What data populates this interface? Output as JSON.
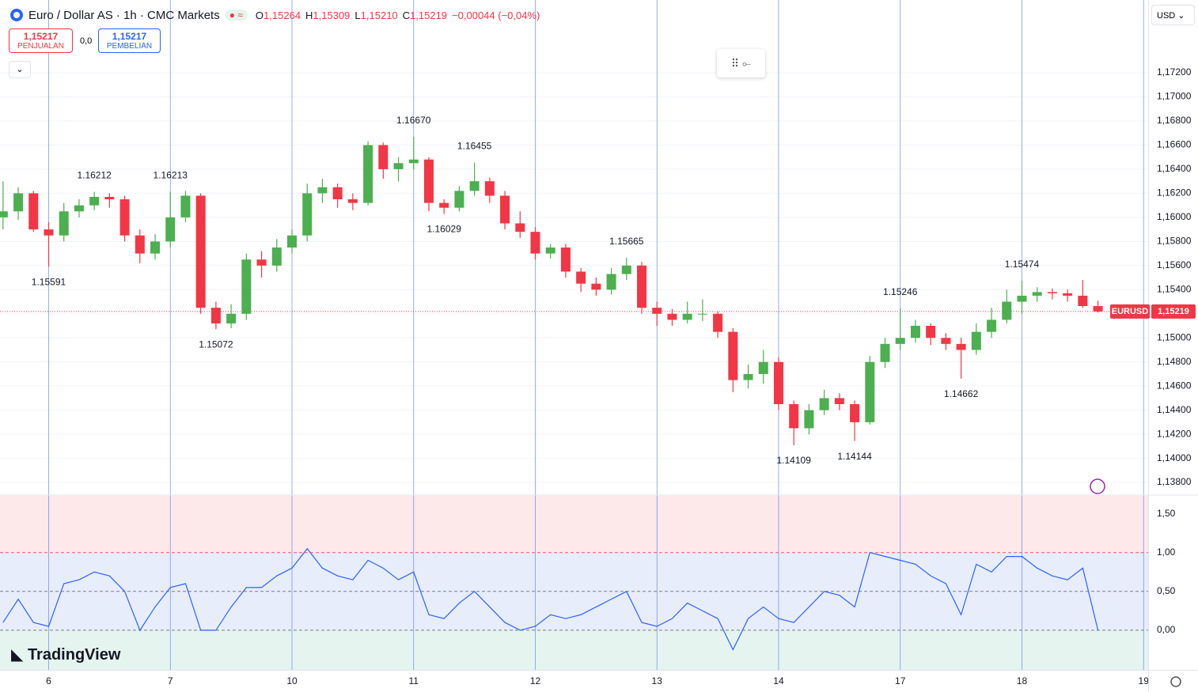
{
  "chart_data": [
    {
      "type": "candlestick",
      "title": "Euro / Dollar AS · 1h · CMC Markets",
      "up_color": "#4caf50",
      "down_color": "#f23645",
      "ohlc": [
        [
          1.16,
          1.163,
          1.159,
          1.1605
        ],
        [
          1.1605,
          1.1625,
          1.1598,
          1.162
        ],
        [
          1.162,
          1.1622,
          1.1588,
          1.159
        ],
        [
          1.159,
          1.1596,
          1.15591,
          1.1585
        ],
        [
          1.1585,
          1.1612,
          1.158,
          1.1605
        ],
        [
          1.1605,
          1.1615,
          1.16,
          1.161
        ],
        [
          1.161,
          1.16212,
          1.1606,
          1.1617
        ],
        [
          1.1617,
          1.162,
          1.1608,
          1.1615
        ],
        [
          1.1615,
          1.1618,
          1.158,
          1.1585
        ],
        [
          1.1585,
          1.159,
          1.1562,
          1.157
        ],
        [
          1.157,
          1.1586,
          1.1565,
          1.158
        ],
        [
          1.158,
          1.16213,
          1.1575,
          1.16
        ],
        [
          1.16,
          1.1622,
          1.1596,
          1.1618
        ],
        [
          1.1618,
          1.162,
          1.152,
          1.1525
        ],
        [
          1.1525,
          1.153,
          1.15072,
          1.1512
        ],
        [
          1.1512,
          1.1528,
          1.1508,
          1.152
        ],
        [
          1.152,
          1.157,
          1.1515,
          1.1565
        ],
        [
          1.1565,
          1.1572,
          1.155,
          1.156
        ],
        [
          1.156,
          1.1582,
          1.1555,
          1.1575
        ],
        [
          1.1575,
          1.159,
          1.157,
          1.1585
        ],
        [
          1.1585,
          1.1628,
          1.158,
          1.162
        ],
        [
          1.162,
          1.1632,
          1.1612,
          1.1625
        ],
        [
          1.1625,
          1.1628,
          1.1608,
          1.1615
        ],
        [
          1.1615,
          1.162,
          1.1606,
          1.1612
        ],
        [
          1.1612,
          1.1663,
          1.161,
          1.166
        ],
        [
          1.166,
          1.1662,
          1.1632,
          1.164
        ],
        [
          1.164,
          1.165,
          1.163,
          1.1645
        ],
        [
          1.1645,
          1.1667,
          1.164,
          1.1648
        ],
        [
          1.1648,
          1.165,
          1.1605,
          1.1612
        ],
        [
          1.1612,
          1.1615,
          1.16029,
          1.1608
        ],
        [
          1.1608,
          1.1626,
          1.1605,
          1.1622
        ],
        [
          1.1622,
          1.16455,
          1.1618,
          1.163
        ],
        [
          1.163,
          1.1633,
          1.1612,
          1.1618
        ],
        [
          1.1618,
          1.1622,
          1.159,
          1.1595
        ],
        [
          1.1595,
          1.1605,
          1.1583,
          1.1588
        ],
        [
          1.1588,
          1.1592,
          1.1565,
          1.157
        ],
        [
          1.157,
          1.1578,
          1.1566,
          1.1575
        ],
        [
          1.1575,
          1.1578,
          1.155,
          1.1555
        ],
        [
          1.1555,
          1.1558,
          1.1538,
          1.1545
        ],
        [
          1.1545,
          1.155,
          1.1535,
          1.154
        ],
        [
          1.154,
          1.1558,
          1.1536,
          1.1553
        ],
        [
          1.1553,
          1.15665,
          1.1548,
          1.156
        ],
        [
          1.156,
          1.1563,
          1.152,
          1.1525
        ],
        [
          1.1525,
          1.153,
          1.151,
          1.152
        ],
        [
          1.152,
          1.1524,
          1.151,
          1.1515
        ],
        [
          1.1515,
          1.153,
          1.1512,
          1.152
        ],
        [
          1.152,
          1.1532,
          1.1514,
          1.152
        ],
        [
          1.152,
          1.1522,
          1.15,
          1.1505
        ],
        [
          1.1505,
          1.1508,
          1.1455,
          1.1465
        ],
        [
          1.1465,
          1.1478,
          1.1458,
          1.147
        ],
        [
          1.147,
          1.149,
          1.1462,
          1.148
        ],
        [
          1.148,
          1.1484,
          1.144,
          1.1445
        ],
        [
          1.1445,
          1.1448,
          1.14109,
          1.1425
        ],
        [
          1.1425,
          1.1445,
          1.142,
          1.144
        ],
        [
          1.144,
          1.1457,
          1.1436,
          1.145
        ],
        [
          1.145,
          1.1454,
          1.144,
          1.1445
        ],
        [
          1.1445,
          1.1448,
          1.14144,
          1.143
        ],
        [
          1.143,
          1.1485,
          1.1428,
          1.148
        ],
        [
          1.148,
          1.15,
          1.1475,
          1.1495
        ],
        [
          1.1495,
          1.15246,
          1.149,
          1.15
        ],
        [
          1.15,
          1.1515,
          1.1496,
          1.151
        ],
        [
          1.151,
          1.1512,
          1.1494,
          1.15
        ],
        [
          1.15,
          1.1504,
          1.149,
          1.1495
        ],
        [
          1.1495,
          1.15,
          1.14662,
          1.149
        ],
        [
          1.149,
          1.1512,
          1.1486,
          1.1505
        ],
        [
          1.1505,
          1.1525,
          1.15,
          1.1515
        ],
        [
          1.1515,
          1.154,
          1.1512,
          1.153
        ],
        [
          1.153,
          1.15474,
          1.152,
          1.1535
        ],
        [
          1.1535,
          1.1542,
          1.153,
          1.1538
        ],
        [
          1.1538,
          1.1541,
          1.1532,
          1.1537
        ],
        [
          1.1537,
          1.154,
          1.153,
          1.1535
        ],
        [
          1.1535,
          1.1548,
          1.1525,
          1.15264
        ],
        [
          1.15264,
          1.15309,
          1.1521,
          1.15219
        ]
      ],
      "xlim": [
        -0.2,
        75.3
      ],
      "xticks": [
        {
          "value": 3,
          "label": "6"
        },
        {
          "value": 11,
          "label": "7"
        },
        {
          "value": 19,
          "label": "10"
        },
        {
          "value": 27,
          "label": "11"
        },
        {
          "value": 35,
          "label": "12"
        },
        {
          "value": 43,
          "label": "13"
        },
        {
          "value": 51,
          "label": "14"
        },
        {
          "value": 59,
          "label": "17"
        },
        {
          "value": 67,
          "label": "18"
        },
        {
          "value": 75,
          "label": "19"
        }
      ],
      "ylim": [
        1.13702,
        1.17804
      ],
      "yticks": [
        {
          "value": 1.138,
          "label": "1,13800"
        },
        {
          "value": 1.14,
          "label": "1,14000"
        },
        {
          "value": 1.142,
          "label": "1,14200"
        },
        {
          "value": 1.144,
          "label": "1,14400"
        },
        {
          "value": 1.146,
          "label": "1,14600"
        },
        {
          "value": 1.148,
          "label": "1,14800"
        },
        {
          "value": 1.15,
          "label": "1,15000"
        },
        {
          "value": 1.152,
          "label": "1,15200"
        },
        {
          "value": 1.154,
          "label": "1,15400"
        },
        {
          "value": 1.156,
          "label": "1,15600"
        },
        {
          "value": 1.158,
          "label": "1,15800"
        },
        {
          "value": 1.16,
          "label": "1,16000"
        },
        {
          "value": 1.162,
          "label": "1,16200"
        },
        {
          "value": 1.164,
          "label": "1,16400"
        },
        {
          "value": 1.166,
          "label": "1,16600"
        },
        {
          "value": 1.168,
          "label": "1,16800"
        },
        {
          "value": 1.17,
          "label": "1,17000"
        },
        {
          "value": 1.172,
          "label": "1,17200"
        }
      ],
      "grid": true,
      "annotations": [
        {
          "x": 3,
          "value": 1.15591,
          "label": "1.15591"
        },
        {
          "x": 6,
          "value": 1.16212,
          "label": "1.16212"
        },
        {
          "x": 11,
          "value": 1.16213,
          "label": "1.16213"
        },
        {
          "x": 14,
          "value": 1.15072,
          "label": "1.15072"
        },
        {
          "x": 27,
          "value": 1.1667,
          "label": "1.16670"
        },
        {
          "x": 29,
          "value": 1.16029,
          "label": "1.16029"
        },
        {
          "x": 31,
          "value": 1.16455,
          "label": "1.16455"
        },
        {
          "x": 41,
          "value": 1.15665,
          "label": "1.15665"
        },
        {
          "x": 52,
          "value": 1.14109,
          "label": "1.14109"
        },
        {
          "x": 56,
          "value": 1.14144,
          "label": "1.14144"
        },
        {
          "x": 59,
          "value": 1.15246,
          "label": "1.15246"
        },
        {
          "x": 63,
          "value": 1.14662,
          "label": "1.14662"
        },
        {
          "x": 67,
          "value": 1.15474,
          "label": "1.15474"
        }
      ],
      "last_price": {
        "value": 1.15219,
        "label": "1,15219",
        "symbol": "EURUSD"
      }
    },
    {
      "type": "line",
      "color": "#2962ff",
      "values": [
        0.1,
        0.4,
        0.1,
        0.05,
        0.6,
        0.65,
        0.75,
        0.7,
        0.5,
        0.0,
        0.3,
        0.55,
        0.6,
        0.0,
        0.0,
        0.3,
        0.55,
        0.55,
        0.7,
        0.8,
        1.05,
        0.8,
        0.7,
        0.65,
        0.9,
        0.8,
        0.65,
        0.75,
        0.2,
        0.15,
        0.35,
        0.5,
        0.3,
        0.1,
        0.0,
        0.05,
        0.2,
        0.15,
        0.2,
        0.3,
        0.4,
        0.5,
        0.1,
        0.05,
        0.15,
        0.35,
        0.25,
        0.15,
        -0.25,
        0.15,
        0.3,
        0.15,
        0.1,
        0.3,
        0.5,
        0.45,
        0.3,
        1.0,
        0.95,
        0.9,
        0.85,
        0.7,
        0.6,
        0.2,
        0.85,
        0.75,
        0.95,
        0.95,
        0.8,
        0.7,
        0.65,
        0.8,
        0.0
      ],
      "xlim": [
        -0.2,
        75.3
      ],
      "ylim": [
        -0.51,
        1.73
      ],
      "yticks": [
        {
          "value": 0,
          "label": "0,00"
        },
        {
          "value": 0.5,
          "label": "0,50"
        },
        {
          "value": 1,
          "label": "1,00"
        },
        {
          "value": 1.5,
          "label": "1,50"
        }
      ],
      "levels": [
        1,
        0.5,
        0
      ]
    }
  ],
  "header": {
    "ohlc": [
      {
        "key": "O",
        "value": "1,15264"
      },
      {
        "key": "H",
        "value": "1,15309"
      },
      {
        "key": "L",
        "value": "1,15210"
      },
      {
        "key": "C",
        "value": "1,15219"
      }
    ],
    "change": "−0,00044 (−0,04%)",
    "currency": "USD"
  },
  "trade": {
    "sell_price": "1,15217",
    "sell_label": "PENJUALAN",
    "spread": "0,0",
    "buy_price": "1,15217",
    "buy_label": "PEMBELIAN"
  },
  "brand": "TradingView"
}
